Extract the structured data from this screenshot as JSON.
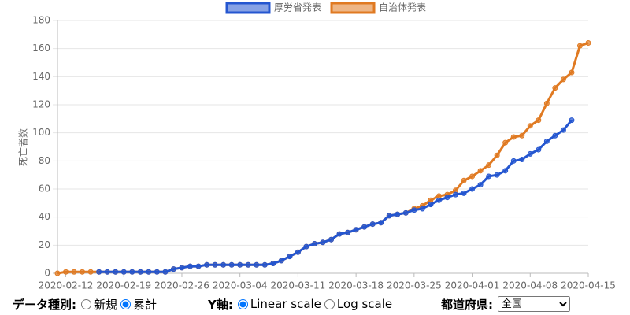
{
  "chart_data": {
    "type": "line",
    "ylabel": "死亡者数",
    "x": [
      "2020-02-11",
      "2020-02-12",
      "2020-02-13",
      "2020-02-14",
      "2020-02-15",
      "2020-02-16",
      "2020-02-17",
      "2020-02-18",
      "2020-02-19",
      "2020-02-20",
      "2020-02-21",
      "2020-02-22",
      "2020-02-23",
      "2020-02-24",
      "2020-02-25",
      "2020-02-26",
      "2020-02-27",
      "2020-02-28",
      "2020-02-29",
      "2020-03-01",
      "2020-03-02",
      "2020-03-03",
      "2020-03-04",
      "2020-03-05",
      "2020-03-06",
      "2020-03-07",
      "2020-03-08",
      "2020-03-09",
      "2020-03-10",
      "2020-03-11",
      "2020-03-12",
      "2020-03-13",
      "2020-03-14",
      "2020-03-15",
      "2020-03-16",
      "2020-03-17",
      "2020-03-18",
      "2020-03-19",
      "2020-03-20",
      "2020-03-21",
      "2020-03-22",
      "2020-03-23",
      "2020-03-24",
      "2020-03-25",
      "2020-03-26",
      "2020-03-27",
      "2020-03-28",
      "2020-03-29",
      "2020-03-30",
      "2020-03-31",
      "2020-04-01",
      "2020-04-02",
      "2020-04-03",
      "2020-04-04",
      "2020-04-05",
      "2020-04-06",
      "2020-04-07",
      "2020-04-08",
      "2020-04-09",
      "2020-04-10",
      "2020-04-11",
      "2020-04-12",
      "2020-04-13",
      "2020-04-14",
      "2020-04-15"
    ],
    "series": [
      {
        "name": "厚労省発表",
        "color": "#2456d0",
        "values": [
          null,
          null,
          null,
          null,
          null,
          1,
          1,
          1,
          1,
          1,
          1,
          1,
          1,
          1,
          3,
          4,
          5,
          5,
          6,
          6,
          6,
          6,
          6,
          6,
          6,
          6,
          7,
          9,
          12,
          15,
          19,
          21,
          22,
          24,
          28,
          29,
          31,
          33,
          35,
          36,
          41,
          42,
          43,
          45,
          46,
          49,
          52,
          54,
          56,
          57,
          60,
          63,
          69,
          70,
          73,
          80,
          81,
          85,
          88,
          94,
          98,
          102,
          109,
          null,
          null
        ]
      },
      {
        "name": "自治体発表",
        "color": "#e07a22",
        "values": [
          0,
          1,
          1,
          1,
          1,
          1,
          1,
          1,
          1,
          1,
          1,
          1,
          1,
          1,
          3,
          4,
          5,
          5,
          6,
          6,
          6,
          6,
          6,
          6,
          6,
          6,
          7,
          9,
          12,
          15,
          19,
          21,
          22,
          24,
          28,
          29,
          31,
          33,
          35,
          36,
          41,
          42,
          43,
          46,
          48,
          52,
          55,
          56,
          59,
          66,
          69,
          73,
          77,
          84,
          93,
          97,
          98,
          105,
          109,
          121,
          132,
          138,
          143,
          162,
          164
        ]
      }
    ],
    "xlim": [
      "2020-02-11",
      "2020-04-15"
    ],
    "xticks": [
      "2020-02-12",
      "2020-02-19",
      "2020-02-26",
      "2020-03-04",
      "2020-03-11",
      "2020-03-18",
      "2020-03-25",
      "2020-04-01",
      "2020-04-08",
      "2020-04-15"
    ],
    "ylim": [
      0,
      180
    ],
    "yticks": [
      0,
      20,
      40,
      60,
      80,
      100,
      120,
      140,
      160,
      180
    ],
    "grid": true,
    "log_scale": false,
    "legend": "top"
  },
  "controls": {
    "data_type": {
      "label": "データ種別:",
      "options": [
        "新規",
        "累計"
      ],
      "selected": 1
    },
    "y_axis": {
      "label": "Y軸:",
      "options": [
        "Linear scale",
        "Log scale"
      ],
      "selected": 0
    },
    "prefecture": {
      "label": "都道府県:",
      "options": [
        "全国"
      ],
      "selected": 0
    }
  }
}
